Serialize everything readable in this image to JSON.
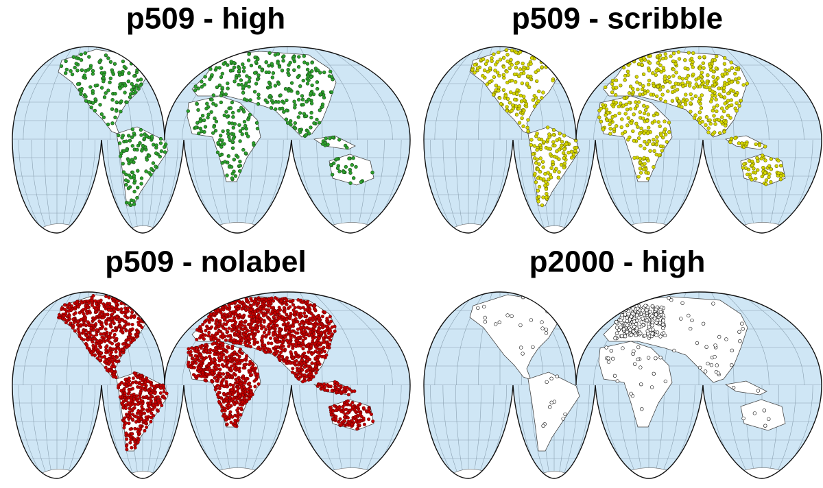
{
  "panels": [
    {
      "title": "p509 - high"
    },
    {
      "title": "p509 - scribble"
    },
    {
      "title": "p509 - nolabel"
    },
    {
      "title": "p2000 - high"
    }
  ]
}
